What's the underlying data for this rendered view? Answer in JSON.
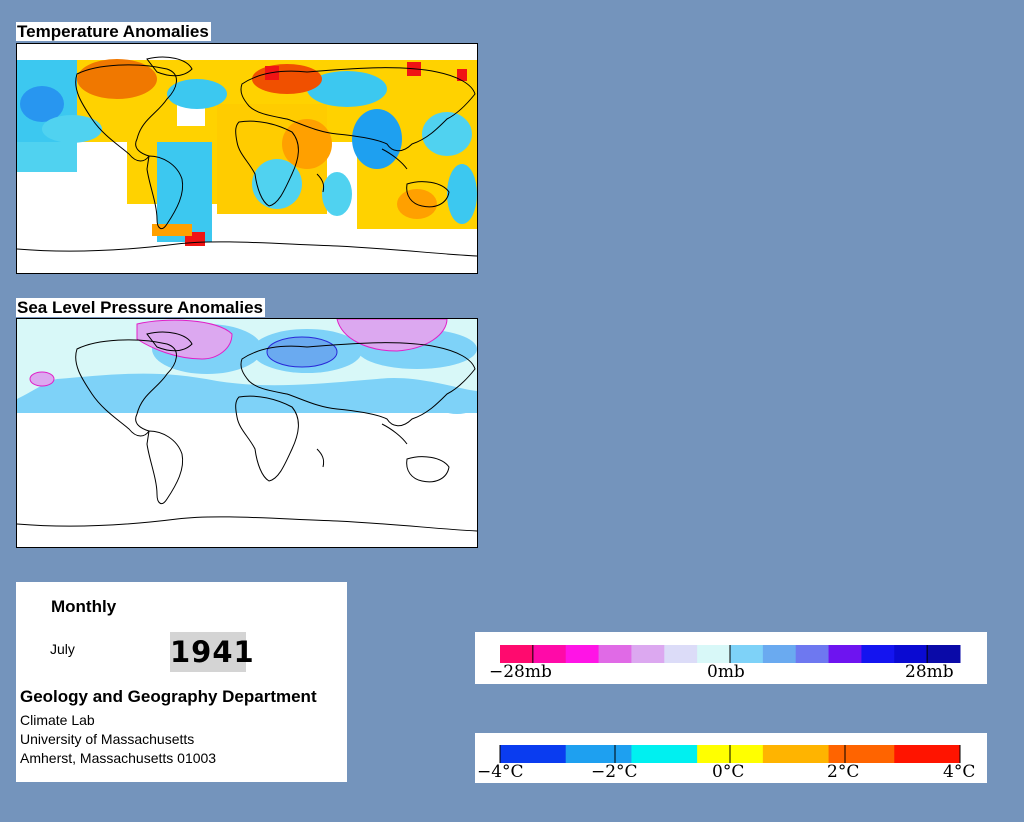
{
  "temperature": {
    "title": "Temperature Anomalies"
  },
  "pressure": {
    "title": "Sea Level Pressure Anomalies"
  },
  "info": {
    "period": "Monthly",
    "month": "July",
    "year": "1941",
    "department": "Geology and Geography Department",
    "lab": "Climate Lab",
    "university": "University of Massachusetts",
    "address": "Amherst, Massachusetts 01003"
  },
  "pressure_legend": {
    "labels": [
      "−28mb",
      "0mb",
      "28mb"
    ],
    "colors": [
      "#ff0a6e",
      "#ff0aa8",
      "#ff14e6",
      "#e06ae6",
      "#dca8f0",
      "#dcdcf8",
      "#d8f8f8",
      "#7ed2f8",
      "#6aaaf0",
      "#6e78f0",
      "#6e14f0",
      "#1414f0",
      "#0a0ad2",
      "#0a0aa8"
    ]
  },
  "temperature_legend": {
    "labels": [
      "−4°C",
      "−2°C",
      "0°C",
      "2°C",
      "4°C"
    ],
    "colors": [
      "#0a3cf0",
      "#1ea0f0",
      "#00f0f0",
      "#ffff00",
      "#ffb400",
      "#ff6400",
      "#ff1400"
    ]
  }
}
